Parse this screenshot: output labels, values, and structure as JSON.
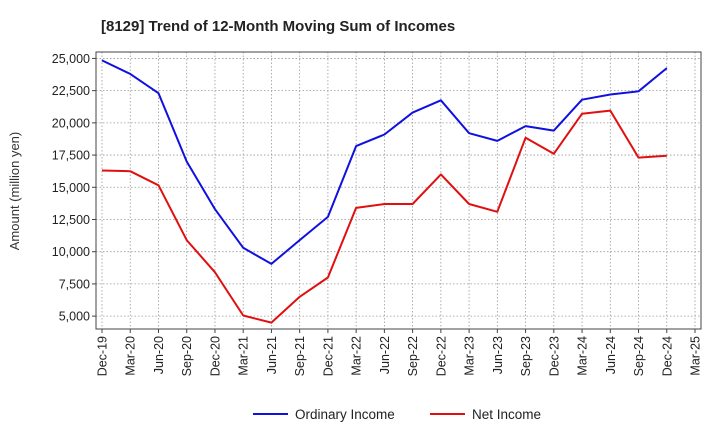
{
  "chart_data": {
    "type": "line",
    "title": "[8129]  Trend of 12-Month Moving Sum of Incomes",
    "xlabel": "",
    "ylabel": "Amount (million yen)",
    "categories": [
      "Dec-19",
      "Mar-20",
      "Jun-20",
      "Sep-20",
      "Dec-20",
      "Mar-21",
      "Jun-21",
      "Sep-21",
      "Dec-21",
      "Mar-22",
      "Jun-22",
      "Sep-22",
      "Dec-22",
      "Mar-23",
      "Jun-23",
      "Sep-23",
      "Dec-23",
      "Mar-24",
      "Jun-24",
      "Sep-24",
      "Dec-24",
      "Mar-25"
    ],
    "yticks": [
      5000,
      7500,
      10000,
      12500,
      15000,
      17500,
      20000,
      22500,
      25000
    ],
    "ytick_labels": [
      "5,000",
      "7,500",
      "10,000",
      "12,500",
      "15,000",
      "17,500",
      "20,000",
      "22,500",
      "25,000"
    ],
    "ylim": [
      4000,
      25500
    ],
    "grid": true,
    "legend_position": "bottom",
    "series": [
      {
        "name": "Ordinary Income",
        "color": "#1010e0",
        "values": [
          24850,
          23800,
          22300,
          17000,
          13300,
          10300,
          9050,
          10900,
          12700,
          18200,
          19100,
          20800,
          21750,
          19200,
          18600,
          19750,
          19400,
          21800,
          22200,
          22450,
          24250,
          null
        ]
      },
      {
        "name": "Net Income",
        "color": "#e01010",
        "values": [
          16300,
          16250,
          15150,
          10900,
          8400,
          5050,
          4500,
          6500,
          8000,
          13400,
          13700,
          13700,
          16000,
          13700,
          13100,
          18850,
          17600,
          20700,
          20950,
          17300,
          17450,
          null
        ]
      }
    ]
  }
}
